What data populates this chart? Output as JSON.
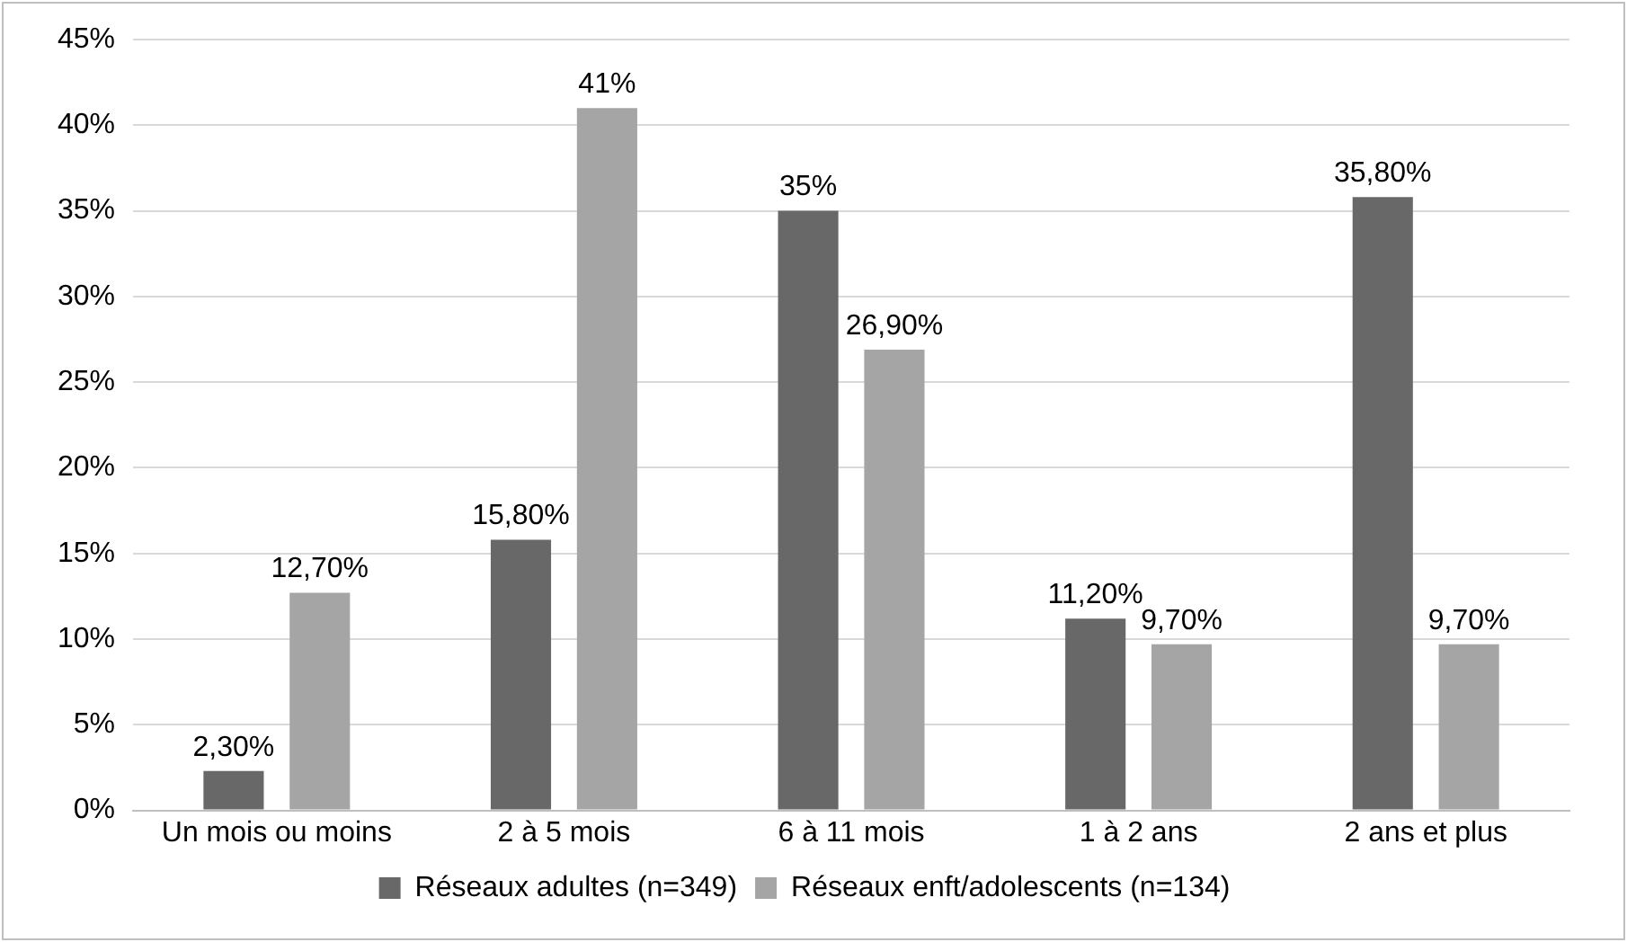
{
  "chart_data": {
    "type": "bar",
    "categories": [
      "Un mois ou moins",
      "2 à 5 mois",
      "6 à 11 mois",
      "1 à 2 ans",
      "2 ans et plus"
    ],
    "series": [
      {
        "name": "Réseaux adultes (n=349)",
        "color": "#686868",
        "values": [
          2.3,
          15.8,
          35,
          11.2,
          35.8
        ],
        "value_labels": [
          "2,30%",
          "15,80%",
          "35%",
          "11,20%",
          "35,80%"
        ]
      },
      {
        "name": "Réseaux enft/adolescents (n=134)",
        "color": "#a5a5a5",
        "values": [
          12.7,
          41,
          26.9,
          9.7,
          9.7
        ],
        "value_labels": [
          "12,70%",
          "41%",
          "26,90%",
          "9,70%",
          "9,70%"
        ]
      }
    ],
    "ylim": [
      0,
      45
    ],
    "yticks": [
      {
        "value": 0,
        "label": "0%"
      },
      {
        "value": 5,
        "label": "5%"
      },
      {
        "value": 10,
        "label": "10%"
      },
      {
        "value": 15,
        "label": "15%"
      },
      {
        "value": 20,
        "label": "20%"
      },
      {
        "value": 25,
        "label": "25%"
      },
      {
        "value": 30,
        "label": "30%"
      },
      {
        "value": 35,
        "label": "35%"
      },
      {
        "value": 40,
        "label": "40%"
      },
      {
        "value": 45,
        "label": "45%"
      }
    ],
    "grid": "y",
    "legend": "bottom"
  }
}
